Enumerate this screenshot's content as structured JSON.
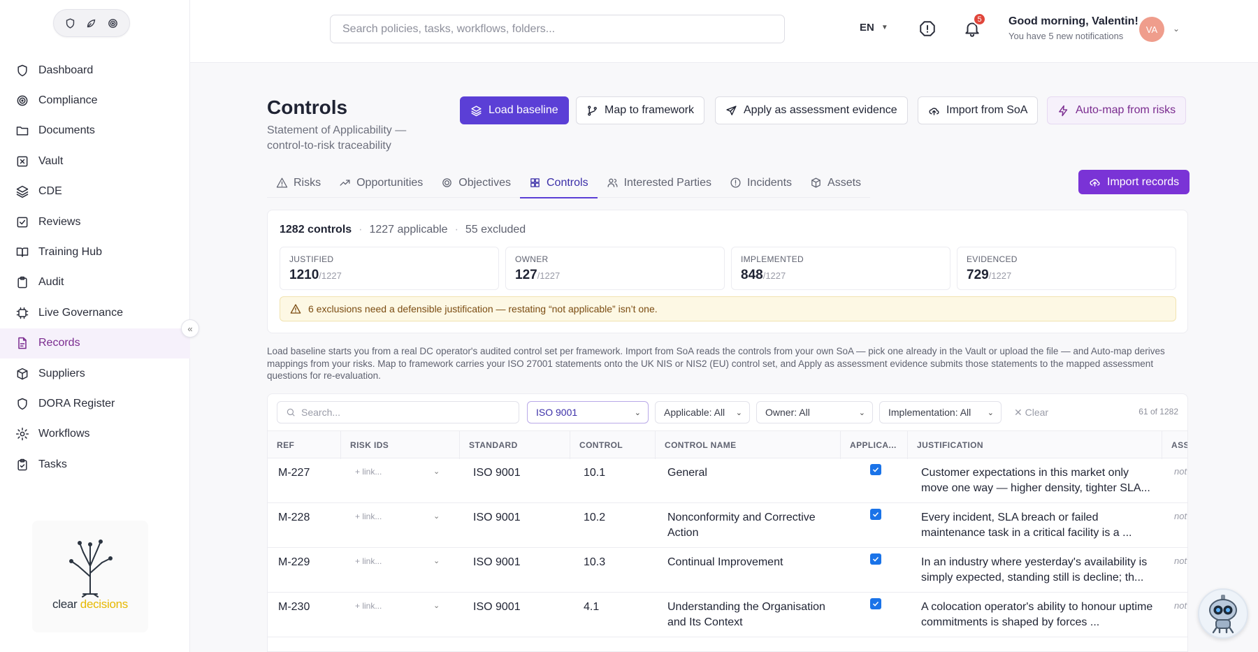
{
  "sidebar": {
    "items": [
      {
        "label": "Dashboard"
      },
      {
        "label": "Compliance"
      },
      {
        "label": "Documents"
      },
      {
        "label": "Vault"
      },
      {
        "label": "CDE"
      },
      {
        "label": "Reviews"
      },
      {
        "label": "Training Hub"
      },
      {
        "label": "Audit"
      },
      {
        "label": "Live Governance"
      },
      {
        "label": "Records"
      },
      {
        "label": "Suppliers"
      },
      {
        "label": "DORA Register"
      },
      {
        "label": "Workflows"
      },
      {
        "label": "Tasks"
      }
    ],
    "active": "Records",
    "collapse_glyph": "«",
    "logo": {
      "text_main": "clear ",
      "text_accent": "decisions"
    }
  },
  "header": {
    "search_placeholder": "Search policies, tasks, workflows, folders...",
    "lang": "EN",
    "notification_count": "5",
    "greeting": "Good morning, Valentin!",
    "notice": "You have 5 new notifications",
    "avatar_initials": "VA"
  },
  "page": {
    "title": "Controls",
    "subtitle": "Statement of Applicability — control-to-risk traceability",
    "actions": {
      "load_baseline": "Load baseline",
      "map_framework": "Map to framework",
      "apply_evidence": "Apply as assessment evidence",
      "import_soa": "Import from SoA",
      "auto_map": "Auto-map from risks",
      "import_records": "Import records"
    },
    "tabs": [
      {
        "label": "Risks"
      },
      {
        "label": "Opportunities"
      },
      {
        "label": "Objectives"
      },
      {
        "label": "Controls"
      },
      {
        "label": "Interested Parties"
      },
      {
        "label": "Incidents"
      },
      {
        "label": "Assets"
      }
    ],
    "active_tab": "Controls"
  },
  "summary": {
    "total": "1282 controls",
    "applicable": "1227 applicable",
    "excluded": "55 excluded",
    "stats": [
      {
        "label": "JUSTIFIED",
        "value": "1210",
        "denominator": "/1227"
      },
      {
        "label": "OWNER",
        "value": "127",
        "denominator": "/1227"
      },
      {
        "label": "IMPLEMENTED",
        "value": "848",
        "denominator": "/1227"
      },
      {
        "label": "EVIDENCED",
        "value": "729",
        "denominator": "/1227"
      }
    ],
    "warning": "6 exclusions need a defensible justification — restating “not applicable” isn’t one."
  },
  "help_text": "Load baseline starts you from a real DC operator's audited control set per framework. Import from SoA reads the controls from your own SoA — pick one already in the Vault or upload the file — and Auto-map derives mappings from your risks. Map to framework carries your ISO 27001 statements onto the UK NIS or NIS2 (EU) control set, and Apply as assessment evidence submits those statements to the mapped assessment questions for re-evaluation.",
  "filters": {
    "search_placeholder": "Search...",
    "standard": "ISO 9001",
    "applicable": "Applicable: All",
    "owner": "Owner: All",
    "implementation": "Implementation: All",
    "clear": "Clear",
    "count": "61 of 1282"
  },
  "table": {
    "columns": [
      "REF",
      "RISK IDS",
      "STANDARD",
      "CONTROL",
      "CONTROL NAME",
      "APPLICA...",
      "JUSTIFICATION",
      "ASS"
    ],
    "rows": [
      {
        "ref": "M-227",
        "risk": "+ link...",
        "standard": "ISO 9001",
        "control": "10.1",
        "name": "General",
        "applicable": true,
        "justification": "Customer expectations in this market only move one way — higher density, tighter SLA...",
        "extra": "not"
      },
      {
        "ref": "M-228",
        "risk": "+ link...",
        "standard": "ISO 9001",
        "control": "10.2",
        "name": "Nonconformity and Corrective Action",
        "applicable": true,
        "justification": "Every incident, SLA breach or failed maintenance task in a critical facility is a ...",
        "extra": "not"
      },
      {
        "ref": "M-229",
        "risk": "+ link...",
        "standard": "ISO 9001",
        "control": "10.3",
        "name": "Continual Improvement",
        "applicable": true,
        "justification": "In an industry where yesterday's availability is simply expected, standing still is decline; th...",
        "extra": "not"
      },
      {
        "ref": "M-230",
        "risk": "+ link...",
        "standard": "ISO 9001",
        "control": "4.1",
        "name": "Understanding the Organisation and Its Context",
        "applicable": true,
        "justification": "A colocation operator's ability to honour uptime commitments is shaped by forces ...",
        "extra": "not"
      }
    ]
  },
  "colors": {
    "primary": "#5b3fd6",
    "accent_purple": "#7a33d6",
    "active_nav": "#7a2b8f",
    "warning_bg": "#fdf8e4"
  }
}
